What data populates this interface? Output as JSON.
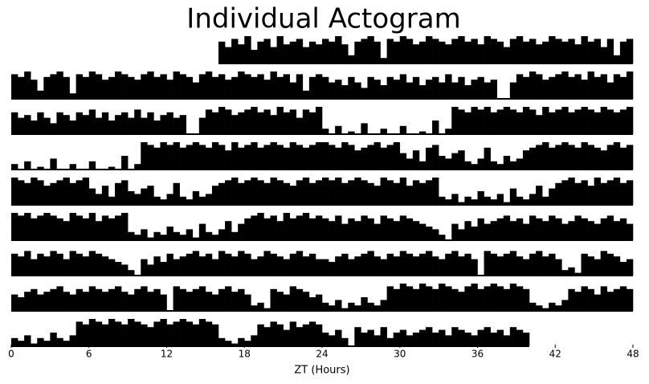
{
  "chart_data": {
    "type": "actogram",
    "title": "Individual Actogram",
    "x_label": "ZT (Hours)",
    "xlim": [
      0,
      48
    ],
    "xticks": [
      0,
      6,
      12,
      18,
      24,
      30,
      36,
      42,
      48
    ],
    "ylim": [
      0,
      10
    ],
    "color": "#000000",
    "x": [
      0,
      0.5,
      1,
      1.5,
      2,
      2.5,
      3,
      3.5,
      4,
      4.5,
      5,
      5.5,
      6,
      6.5,
      7,
      7.5,
      8,
      8.5,
      9,
      9.5,
      10,
      10.5,
      11,
      11.5,
      12,
      12.5,
      13,
      13.5,
      14,
      14.5,
      15,
      15.5,
      16,
      16.5,
      17,
      17.5,
      18,
      18.5,
      19,
      19.5,
      20,
      20.5,
      21,
      21.5,
      22,
      22.5,
      23,
      23.5
    ],
    "values": [
      [
        null,
        null,
        null,
        null,
        null,
        null,
        null,
        null,
        null,
        null,
        null,
        null,
        null,
        null,
        null,
        null,
        null,
        null,
        null,
        null,
        null,
        null,
        null,
        null,
        null,
        null,
        null,
        null,
        null,
        null,
        null,
        null,
        8,
        6,
        9,
        7,
        10,
        5,
        8,
        9,
        6,
        10,
        7,
        8,
        9,
        6,
        8,
        7
      ],
      [
        9,
        8,
        10,
        7,
        3,
        8,
        9,
        10,
        8,
        2,
        9,
        8,
        10,
        9,
        7,
        8,
        10,
        9,
        8,
        7,
        9,
        10,
        8,
        9,
        7,
        10,
        9,
        8,
        6,
        9,
        10,
        8,
        9,
        7,
        8,
        10,
        9,
        8,
        9,
        7,
        10,
        8,
        9,
        6,
        9,
        3,
        8,
        9
      ],
      [
        8,
        6,
        7,
        5,
        8,
        6,
        4,
        8,
        7,
        5,
        8,
        7,
        9,
        6,
        8,
        5,
        7,
        8,
        6,
        9,
        6,
        8,
        5,
        7,
        8,
        6,
        7,
        0,
        0,
        6,
        9,
        8,
        10,
        9,
        7,
        8,
        9,
        10,
        8,
        9,
        7,
        10,
        8,
        9,
        6,
        9,
        8,
        10
      ],
      [
        2,
        0,
        3,
        0,
        1,
        0,
        4,
        0,
        0,
        2,
        0,
        0,
        3,
        0,
        0,
        1,
        0,
        5,
        0,
        2,
        10,
        9,
        8,
        10,
        9,
        10,
        8,
        9,
        10,
        9,
        8,
        10,
        9,
        7,
        10,
        8,
        9,
        10,
        8,
        9,
        10,
        9,
        8,
        10,
        9,
        8,
        9,
        10
      ],
      [
        10,
        9,
        8,
        10,
        9,
        7,
        8,
        9,
        10,
        8,
        9,
        10,
        6,
        4,
        7,
        3,
        8,
        9,
        5,
        4,
        6,
        7,
        3,
        2,
        4,
        8,
        3,
        2,
        5,
        3,
        4,
        7,
        8,
        9,
        10,
        8,
        9,
        10,
        9,
        8,
        10,
        9,
        8,
        7,
        9,
        10,
        8,
        9
      ],
      [
        10,
        9,
        10,
        8,
        9,
        10,
        9,
        8,
        7,
        10,
        9,
        8,
        10,
        7,
        9,
        8,
        9,
        10,
        3,
        2,
        4,
        1,
        3,
        2,
        5,
        3,
        2,
        4,
        1,
        6,
        3,
        2,
        4,
        7,
        3,
        6,
        8,
        9,
        10,
        8,
        9,
        7,
        10,
        8,
        9,
        10,
        8,
        9
      ],
      [
        8,
        7,
        9,
        6,
        8,
        7,
        9,
        8,
        6,
        9,
        8,
        7,
        9,
        8,
        7,
        6,
        5,
        4,
        2,
        0,
        6,
        4,
        7,
        5,
        8,
        6,
        7,
        8,
        9,
        7,
        8,
        6,
        9,
        8,
        7,
        9,
        8,
        6,
        7,
        9,
        8,
        7,
        6,
        8,
        9,
        7,
        8,
        6
      ],
      [
        6,
        5,
        7,
        8,
        6,
        7,
        8,
        9,
        7,
        6,
        8,
        7,
        9,
        8,
        7,
        8,
        9,
        7,
        6,
        8,
        9,
        7,
        8,
        6,
        0,
        9,
        8,
        7,
        8,
        9,
        7,
        6,
        8,
        9,
        7,
        8,
        6,
        2,
        3,
        1,
        8,
        7,
        6,
        9,
        8,
        7,
        5,
        6
      ],
      [
        3,
        2,
        4,
        1,
        3,
        2,
        5,
        3,
        2,
        4,
        9,
        8,
        10,
        9,
        8,
        10,
        9,
        8,
        10,
        9,
        8,
        7,
        9,
        10,
        8,
        9,
        10,
        9,
        8,
        10,
        9,
        8,
        3,
        2,
        1,
        3,
        2,
        4,
        8,
        7,
        9,
        8,
        6,
        9,
        7,
        8,
        9,
        8
      ],
      [
        5,
        4,
        6,
        3,
        0,
        7,
        5,
        6,
        4,
        7,
        3,
        5,
        6,
        4,
        5,
        6,
        7,
        5,
        6,
        4,
        7,
        6,
        5,
        4,
        6,
        7,
        5,
        6,
        4,
        7,
        6,
        5,
        null,
        null,
        null,
        null,
        null,
        null,
        null,
        null,
        null,
        null,
        null,
        null,
        null,
        null,
        null,
        null
      ]
    ]
  }
}
